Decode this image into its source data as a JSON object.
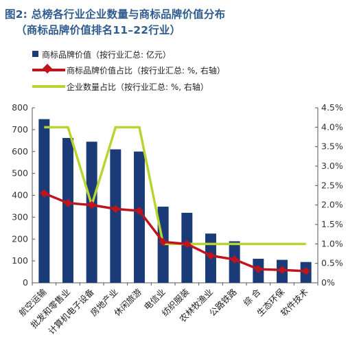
{
  "title_line1": "图2: 总榜各行业企业数量与商标品牌价值分布",
  "title_line2": "（商标品牌价值排名11–22行业）",
  "legend": {
    "bar": "商标品牌价值（按行业汇总: 亿元）",
    "red": "商标品牌价值占比（按行业汇总: %, 右轴）",
    "green": "企业数量占比（按行业汇总: %, 右轴）"
  },
  "colors": {
    "bar": "#1a3a78",
    "red": "#c0141c",
    "green": "#b8d432",
    "title": "#2f5c8f"
  },
  "chart_data": {
    "type": "bar",
    "categories": [
      "航空运输",
      "批发和零售业",
      "计算机电子设备",
      "房地产业",
      "休闲旅游",
      "电信业",
      "纺织服装",
      "农林牧渔业",
      "公路铁路",
      "综 合",
      "生态环保",
      "软件技术"
    ],
    "left_axis": {
      "ylim": [
        0,
        800
      ],
      "ticks": [
        "0",
        "100",
        "200",
        "300",
        "400",
        "500",
        "600",
        "700",
        "800"
      ]
    },
    "right_axis": {
      "ylim": [
        0,
        4.5
      ],
      "ticks": [
        "0%",
        "0.5%",
        "1.0%",
        "1.5%",
        "2.0%",
        "2.5%",
        "3.0%",
        "3.5%",
        "4.0%",
        "4.5%"
      ]
    },
    "series": [
      {
        "name": "商标品牌价值（按行业汇总: 亿元）",
        "type": "bar",
        "axis": "left",
        "values": [
          748,
          662,
          645,
          610,
          600,
          348,
          320,
          225,
          190,
          110,
          105,
          95
        ]
      },
      {
        "name": "商标品牌价值占比（按行业汇总: %, 右轴）",
        "type": "line",
        "axis": "right",
        "marker": "diamond",
        "values": [
          2.3,
          2.05,
          2.0,
          1.9,
          1.85,
          1.05,
          1.0,
          0.7,
          0.6,
          0.35,
          0.33,
          0.3
        ]
      },
      {
        "name": "企业数量占比（按行业汇总: %, 右轴）",
        "type": "line",
        "axis": "right",
        "values": [
          4.0,
          4.0,
          2.0,
          4.0,
          4.0,
          1.0,
          1.0,
          1.0,
          1.0,
          1.0,
          1.0,
          1.0
        ]
      }
    ]
  }
}
